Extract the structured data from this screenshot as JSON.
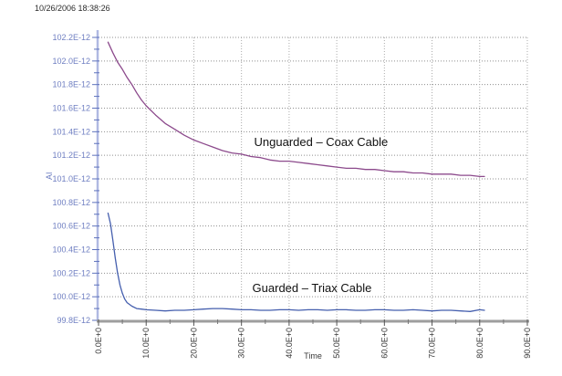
{
  "header": {
    "timestamp": "10/26/2006 18:38:26"
  },
  "chart_data": {
    "type": "line",
    "title": "",
    "xlabel": "Time",
    "ylabel": "AI",
    "xlim": [
      0,
      90
    ],
    "ylim": [
      99.8,
      102.2
    ],
    "value_scale": "E-12",
    "x_major_step": 10,
    "x_minor_step": 5,
    "y_major_step": 0.2,
    "y_minor_step": 0.1,
    "grid": "dotted",
    "legend_position": "inline-annotations",
    "x_tick_labels": [
      "0.0E+0",
      "10.0E+0",
      "20.0E+0",
      "30.0E+0",
      "40.0E+0",
      "50.0E+0",
      "60.0E+0",
      "70.0E+0",
      "80.0E+0",
      "90.0E+0"
    ],
    "y_tick_labels": [
      "99.8E-12",
      "100.0E-12",
      "100.2E-12",
      "100.4E-12",
      "100.6E-12",
      "100.8E-12",
      "101.0E-12",
      "101.2E-12",
      "101.4E-12",
      "101.6E-12",
      "101.8E-12",
      "102.0E-12",
      "102.2E-12"
    ],
    "colors": {
      "unguarded_line": "#8c4a8c",
      "guarded_line": "#455fae",
      "y_axis": "#b0b9e2",
      "y_ticks_labels": "#6f7fc2",
      "x_axis": "#9e9e9e",
      "x_ticks_labels": "#3a3a3a",
      "grid_h": "#8f8f8f",
      "grid_v": "#ababab",
      "annotation_text": "#111111"
    },
    "series": [
      {
        "name": "Unguarded – Coax Cable",
        "color": "#8c4a8c",
        "points": [
          [
            2,
            102.16
          ],
          [
            3,
            102.07
          ],
          [
            4,
            101.99
          ],
          [
            5,
            101.93
          ],
          [
            6,
            101.86
          ],
          [
            7,
            101.8
          ],
          [
            8,
            101.73
          ],
          [
            9,
            101.67
          ],
          [
            10,
            101.62
          ],
          [
            12,
            101.54
          ],
          [
            14,
            101.47
          ],
          [
            16,
            101.42
          ],
          [
            18,
            101.37
          ],
          [
            20,
            101.33
          ],
          [
            22,
            101.3
          ],
          [
            24,
            101.27
          ],
          [
            26,
            101.24
          ],
          [
            28,
            101.22
          ],
          [
            30,
            101.21
          ],
          [
            32,
            101.19
          ],
          [
            34,
            101.18
          ],
          [
            36,
            101.16
          ],
          [
            38,
            101.15
          ],
          [
            40,
            101.15
          ],
          [
            42,
            101.14
          ],
          [
            44,
            101.13
          ],
          [
            46,
            101.12
          ],
          [
            48,
            101.11
          ],
          [
            50,
            101.1
          ],
          [
            52,
            101.09
          ],
          [
            54,
            101.09
          ],
          [
            56,
            101.08
          ],
          [
            58,
            101.08
          ],
          [
            60,
            101.07
          ],
          [
            62,
            101.06
          ],
          [
            64,
            101.06
          ],
          [
            66,
            101.05
          ],
          [
            68,
            101.05
          ],
          [
            70,
            101.04
          ],
          [
            72,
            101.04
          ],
          [
            74,
            101.04
          ],
          [
            76,
            101.03
          ],
          [
            78,
            101.03
          ],
          [
            80,
            101.02
          ],
          [
            81,
            101.02
          ]
        ]
      },
      {
        "name": "Guarded – Triax Cable",
        "color": "#455fae",
        "points": [
          [
            2,
            100.71
          ],
          [
            2.5,
            100.62
          ],
          [
            3,
            100.48
          ],
          [
            3.5,
            100.33
          ],
          [
            4,
            100.2
          ],
          [
            4.5,
            100.1
          ],
          [
            5,
            100.03
          ],
          [
            5.5,
            99.98
          ],
          [
            6,
            99.95
          ],
          [
            7,
            99.92
          ],
          [
            8,
            99.9
          ],
          [
            9,
            99.895
          ],
          [
            10,
            99.89
          ],
          [
            12,
            99.885
          ],
          [
            14,
            99.88
          ],
          [
            16,
            99.885
          ],
          [
            18,
            99.885
          ],
          [
            20,
            99.89
          ],
          [
            22,
            99.895
          ],
          [
            24,
            99.9
          ],
          [
            26,
            99.9
          ],
          [
            28,
            99.895
          ],
          [
            30,
            99.89
          ],
          [
            32,
            99.89
          ],
          [
            34,
            99.885
          ],
          [
            36,
            99.885
          ],
          [
            38,
            99.89
          ],
          [
            40,
            99.89
          ],
          [
            42,
            99.885
          ],
          [
            44,
            99.89
          ],
          [
            46,
            99.89
          ],
          [
            48,
            99.885
          ],
          [
            50,
            99.89
          ],
          [
            52,
            99.89
          ],
          [
            54,
            99.885
          ],
          [
            56,
            99.885
          ],
          [
            58,
            99.89
          ],
          [
            60,
            99.89
          ],
          [
            62,
            99.885
          ],
          [
            64,
            99.885
          ],
          [
            66,
            99.89
          ],
          [
            68,
            99.885
          ],
          [
            70,
            99.88
          ],
          [
            72,
            99.885
          ],
          [
            74,
            99.885
          ],
          [
            76,
            99.88
          ],
          [
            78,
            99.875
          ],
          [
            80,
            99.89
          ],
          [
            81,
            99.885
          ]
        ]
      }
    ],
    "annotations": [
      {
        "text": "Unguarded – Coax Cable",
        "x": 46.7,
        "y": 101.31
      },
      {
        "text": "Guarded – Triax Cable",
        "x": 44.8,
        "y": 100.07
      }
    ]
  }
}
